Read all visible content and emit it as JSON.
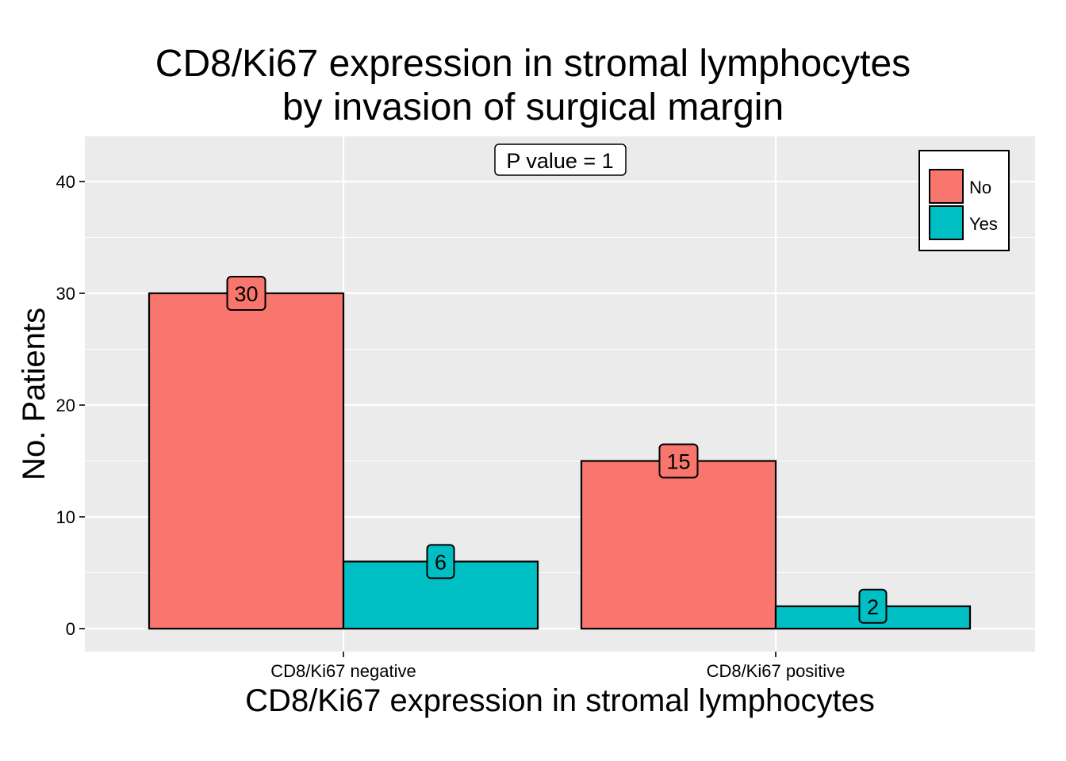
{
  "chart_data": {
    "type": "bar",
    "title_lines": [
      "CD8/Ki67 expression in stromal lymphocytes",
      "by invasion of surgical margin"
    ],
    "xlabel": "CD8/Ki67 expression in stromal lymphocytes",
    "ylabel": "No. Patients",
    "categories": [
      "CD8/Ki67 negative",
      "CD8/Ki67 positive"
    ],
    "series": [
      {
        "name": "No",
        "color": "#F8766D",
        "values": [
          30,
          15
        ]
      },
      {
        "name": "Yes",
        "color": "#00BFC4",
        "values": [
          6,
          2
        ]
      }
    ],
    "ylim": [
      -2,
      44
    ],
    "yticks": [
      0,
      10,
      20,
      30,
      40
    ],
    "grid": true,
    "legend_position": "top-right",
    "annotation": "P value = 1"
  },
  "colors": {
    "panel_background": "#EBEBEB",
    "gridline": "#FFFFFF"
  }
}
